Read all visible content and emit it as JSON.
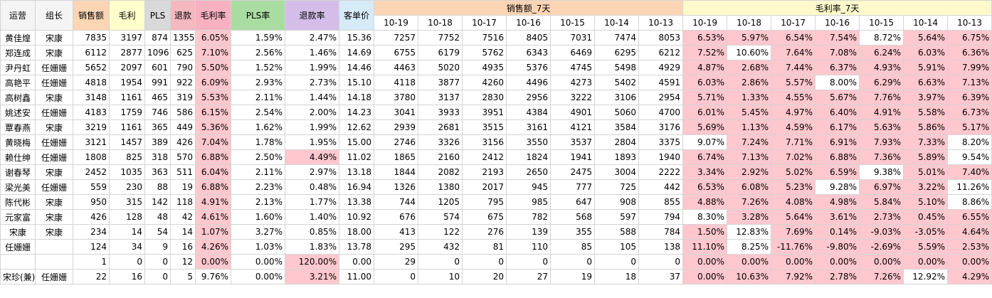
{
  "columns": [
    "运营",
    "组长",
    "销售额",
    "毛利",
    "PLS",
    "退款",
    "毛利率",
    "PLS率",
    "退款率",
    "客单价"
  ],
  "group_sales_7d": "销售额_7天",
  "group_gm_7d": "毛利率_7天",
  "dates": [
    "10-19",
    "10-18",
    "10-17",
    "10-16",
    "10-15",
    "10-14",
    "10-13"
  ],
  "rows": [
    {
      "op": "黄佳煌",
      "lead": "宋康",
      "sales": "7835",
      "gp": "3197",
      "pls": "874",
      "refund": "1355",
      "gm": "6.05%",
      "pls_rate": "1.59%",
      "refund_rate": "2.47%",
      "aov": "15.36",
      "s7": [
        "7257",
        "7752",
        "7516",
        "8405",
        "7031",
        "7474",
        "8053"
      ],
      "g7": [
        "6.53%",
        "5.97%",
        "6.54%",
        "7.54%",
        "8.72%",
        "5.64%",
        "6.75%"
      ],
      "g7_hl": [
        1,
        1,
        1,
        1,
        0,
        1,
        1
      ],
      "gm_hl": 1,
      "rr_hl": 0
    },
    {
      "op": "郑连成",
      "lead": "宋康",
      "sales": "6112",
      "gp": "2877",
      "pls": "1096",
      "refund": "625",
      "gm": "7.10%",
      "pls_rate": "2.56%",
      "refund_rate": "1.46%",
      "aov": "14.69",
      "s7": [
        "6755",
        "6179",
        "5762",
        "6343",
        "6469",
        "6295",
        "6212"
      ],
      "g7": [
        "7.52%",
        "10.60%",
        "7.64%",
        "7.08%",
        "6.24%",
        "6.03%",
        "6.36%"
      ],
      "g7_hl": [
        1,
        0,
        1,
        1,
        1,
        1,
        1
      ],
      "gm_hl": 1,
      "rr_hl": 0
    },
    {
      "op": "尹丹虹",
      "lead": "任姗姗",
      "sales": "5652",
      "gp": "2097",
      "pls": "601",
      "refund": "790",
      "gm": "5.50%",
      "pls_rate": "1.52%",
      "refund_rate": "1.99%",
      "aov": "14.46",
      "s7": [
        "4463",
        "5020",
        "4935",
        "5376",
        "4745",
        "5498",
        "4929"
      ],
      "g7": [
        "4.87%",
        "2.68%",
        "7.44%",
        "6.37%",
        "4.93%",
        "5.91%",
        "7.99%"
      ],
      "g7_hl": [
        1,
        1,
        1,
        1,
        1,
        1,
        1
      ],
      "gm_hl": 1,
      "rr_hl": 0
    },
    {
      "op": "高艳平",
      "lead": "任姗姗",
      "sales": "4818",
      "gp": "1954",
      "pls": "991",
      "refund": "922",
      "gm": "6.09%",
      "pls_rate": "2.93%",
      "refund_rate": "2.73%",
      "aov": "15.10",
      "s7": [
        "4118",
        "3877",
        "4260",
        "4496",
        "4273",
        "5402",
        "4591"
      ],
      "g7": [
        "6.03%",
        "2.86%",
        "5.57%",
        "8.00%",
        "6.29%",
        "6.63%",
        "7.13%"
      ],
      "g7_hl": [
        1,
        1,
        1,
        0,
        1,
        1,
        1
      ],
      "gm_hl": 1,
      "rr_hl": 0
    },
    {
      "op": "高树鑫",
      "lead": "宋康",
      "sales": "3148",
      "gp": "1161",
      "pls": "465",
      "refund": "319",
      "gm": "5.53%",
      "pls_rate": "2.11%",
      "refund_rate": "1.44%",
      "aov": "14.18",
      "s7": [
        "3780",
        "3137",
        "2830",
        "2956",
        "3222",
        "3106",
        "2954"
      ],
      "g7": [
        "5.71%",
        "1.33%",
        "4.55%",
        "5.67%",
        "7.76%",
        "3.97%",
        "6.39%"
      ],
      "g7_hl": [
        1,
        1,
        1,
        1,
        1,
        1,
        1
      ],
      "gm_hl": 1,
      "rr_hl": 0
    },
    {
      "op": "姚述安",
      "lead": "任姗姗",
      "sales": "4183",
      "gp": "1759",
      "pls": "746",
      "refund": "586",
      "gm": "6.15%",
      "pls_rate": "2.54%",
      "refund_rate": "2.00%",
      "aov": "14.23",
      "s7": [
        "3041",
        "3933",
        "3951",
        "4384",
        "4901",
        "5060",
        "4700"
      ],
      "g7": [
        "6.01%",
        "5.45%",
        "4.97%",
        "6.40%",
        "4.91%",
        "5.58%",
        "6.73%"
      ],
      "g7_hl": [
        1,
        1,
        1,
        1,
        1,
        1,
        1
      ],
      "gm_hl": 1,
      "rr_hl": 0
    },
    {
      "op": "覃春燕",
      "lead": "宋康",
      "sales": "3219",
      "gp": "1161",
      "pls": "365",
      "refund": "449",
      "gm": "5.36%",
      "pls_rate": "1.62%",
      "refund_rate": "1.99%",
      "aov": "12.62",
      "s7": [
        "2939",
        "2681",
        "3515",
        "3161",
        "4121",
        "3584",
        "3176"
      ],
      "g7": [
        "5.69%",
        "1.13%",
        "4.59%",
        "6.17%",
        "5.63%",
        "5.86%",
        "5.17%"
      ],
      "g7_hl": [
        1,
        1,
        1,
        1,
        1,
        1,
        1
      ],
      "gm_hl": 1,
      "rr_hl": 0
    },
    {
      "op": "黄晓梅",
      "lead": "任姗姗",
      "sales": "3121",
      "gp": "1457",
      "pls": "389",
      "refund": "426",
      "gm": "7.04%",
      "pls_rate": "1.78%",
      "refund_rate": "1.95%",
      "aov": "15.00",
      "s7": [
        "2746",
        "3326",
        "3156",
        "3550",
        "3537",
        "2804",
        "3375"
      ],
      "g7": [
        "9.07%",
        "7.24%",
        "7.71%",
        "6.91%",
        "7.93%",
        "7.33%",
        "8.20%"
      ],
      "g7_hl": [
        0,
        1,
        1,
        1,
        1,
        1,
        0
      ],
      "gm_hl": 1,
      "rr_hl": 0
    },
    {
      "op": "赖仕绅",
      "lead": "任姗姗",
      "sales": "1808",
      "gp": "825",
      "pls": "318",
      "refund": "570",
      "gm": "6.88%",
      "pls_rate": "2.50%",
      "refund_rate": "4.49%",
      "aov": "11.02",
      "s7": [
        "1865",
        "2160",
        "2412",
        "1824",
        "1941",
        "1893",
        "1940"
      ],
      "g7": [
        "6.74%",
        "7.13%",
        "7.02%",
        "6.88%",
        "7.36%",
        "5.89%",
        "9.54%"
      ],
      "g7_hl": [
        1,
        1,
        1,
        1,
        1,
        1,
        0
      ],
      "gm_hl": 1,
      "rr_hl": 1
    },
    {
      "op": "谢春琴",
      "lead": "宋康",
      "sales": "2452",
      "gp": "1035",
      "pls": "363",
      "refund": "511",
      "gm": "6.04%",
      "pls_rate": "2.11%",
      "refund_rate": "2.97%",
      "aov": "13.18",
      "s7": [
        "1844",
        "2082",
        "2193",
        "2650",
        "2475",
        "3004",
        "2222"
      ],
      "g7": [
        "3.34%",
        "2.92%",
        "5.02%",
        "6.59%",
        "9.38%",
        "5.01%",
        "7.40%"
      ],
      "g7_hl": [
        1,
        1,
        1,
        1,
        0,
        1,
        1
      ],
      "gm_hl": 1,
      "rr_hl": 0
    },
    {
      "op": "梁光美",
      "lead": "任姗姗",
      "sales": "559",
      "gp": "230",
      "pls": "88",
      "refund": "19",
      "gm": "6.88%",
      "pls_rate": "2.23%",
      "refund_rate": "0.48%",
      "aov": "16.94",
      "s7": [
        "1326",
        "1380",
        "2017",
        "945",
        "777",
        "725",
        "442"
      ],
      "g7": [
        "6.53%",
        "6.08%",
        "5.23%",
        "9.28%",
        "6.97%",
        "3.22%",
        "11.26%"
      ],
      "g7_hl": [
        1,
        1,
        1,
        0,
        1,
        1,
        0
      ],
      "gm_hl": 1,
      "rr_hl": 0
    },
    {
      "op": "陈代彬",
      "lead": "宋康",
      "sales": "950",
      "gp": "315",
      "pls": "142",
      "refund": "118",
      "gm": "4.91%",
      "pls_rate": "2.13%",
      "refund_rate": "1.77%",
      "aov": "13.38",
      "s7": [
        "744",
        "1205",
        "795",
        "985",
        "647",
        "908",
        "855"
      ],
      "g7": [
        "4.88%",
        "7.26%",
        "4.08%",
        "4.98%",
        "5.84%",
        "5.10%",
        "8.86%"
      ],
      "g7_hl": [
        1,
        1,
        1,
        1,
        1,
        1,
        0
      ],
      "gm_hl": 1,
      "rr_hl": 0
    },
    {
      "op": "元家富",
      "lead": "宋康",
      "sales": "426",
      "gp": "128",
      "pls": "48",
      "refund": "42",
      "gm": "4.61%",
      "pls_rate": "1.60%",
      "refund_rate": "1.40%",
      "aov": "10.92",
      "s7": [
        "676",
        "574",
        "675",
        "782",
        "568",
        "597",
        "794"
      ],
      "g7": [
        "8.30%",
        "3.28%",
        "5.64%",
        "3.61%",
        "2.73%",
        "0.45%",
        "6.55%"
      ],
      "g7_hl": [
        0,
        1,
        1,
        1,
        1,
        1,
        1
      ],
      "gm_hl": 1,
      "rr_hl": 0
    },
    {
      "op": "宋康",
      "lead": "宋康",
      "sales": "234",
      "gp": "14",
      "pls": "54",
      "refund": "14",
      "gm": "1.07%",
      "pls_rate": "3.27%",
      "refund_rate": "0.85%",
      "aov": "18.00",
      "s7": [
        "413",
        "122",
        "276",
        "139",
        "355",
        "588",
        "784"
      ],
      "g7": [
        "1.50%",
        "12.83%",
        "7.69%",
        "0.14%",
        "-9.03%",
        "-3.05%",
        "4.64%"
      ],
      "g7_hl": [
        1,
        0,
        1,
        1,
        1,
        1,
        1
      ],
      "gm_hl": 1,
      "rr_hl": 0
    },
    {
      "op": "任姗姗",
      "lead": "",
      "sales": "124",
      "gp": "34",
      "pls": "9",
      "refund": "16",
      "gm": "4.26%",
      "pls_rate": "1.03%",
      "refund_rate": "1.83%",
      "aov": "13.78",
      "s7": [
        "295",
        "432",
        "81",
        "110",
        "85",
        "105",
        "138"
      ],
      "g7": [
        "11.10%",
        "8.25%",
        "-11.76%",
        "-9.80%",
        "-2.69%",
        "5.59%",
        "2.53%"
      ],
      "g7_hl": [
        1,
        0,
        1,
        1,
        1,
        1,
        1
      ],
      "gm_hl": 1,
      "rr_hl": 0
    },
    {
      "op": "",
      "lead": "",
      "sales": "1",
      "gp": "0",
      "pls": "0",
      "refund": "12",
      "gm": "0.00%",
      "pls_rate": "0.00%",
      "refund_rate": "120.00%",
      "aov": "0.00",
      "s7": [
        "29",
        "0",
        "0",
        "0",
        "0",
        "0",
        "0"
      ],
      "g7": [
        "0.00%",
        "0.00%",
        "0.00%",
        "0.00%",
        "0.00%",
        "0.00%",
        "0.00%"
      ],
      "g7_hl": [
        1,
        1,
        1,
        1,
        1,
        1,
        1
      ],
      "gm_hl": 1,
      "rr_hl": 1
    },
    {
      "op": "宋珍(兼)",
      "lead": "任姗姗",
      "sales": "22",
      "gp": "16",
      "pls": "0",
      "refund": "5",
      "gm": "9.76%",
      "pls_rate": "0.00%",
      "refund_rate": "3.21%",
      "aov": "11.00",
      "s7": [
        "0",
        "10",
        "20",
        "27",
        "19",
        "18",
        "37"
      ],
      "g7": [
        "0.00%",
        "10.63%",
        "7.92%",
        "2.78%",
        "7.26%",
        "12.92%",
        "4.29%"
      ],
      "g7_hl": [
        1,
        1,
        1,
        1,
        1,
        0,
        1
      ],
      "gm_hl": 0,
      "rr_hl": 1
    }
  ],
  "colors": {
    "highlight": "#ffc7ce"
  }
}
